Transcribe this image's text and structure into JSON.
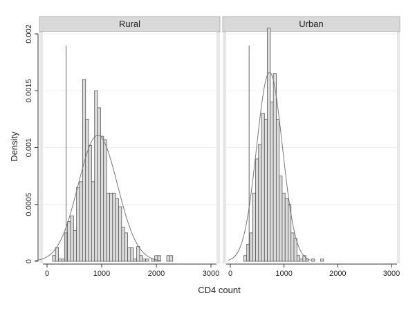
{
  "chart_data": {
    "type": "bar",
    "chart_kind": "histogram with normal density overlay, faceted",
    "xlabel": "CD4 count",
    "ylabel": "Density",
    "xlim": [
      0,
      3000
    ],
    "ylim": [
      0,
      0.002
    ],
    "x_ticks": [
      {
        "value": 0,
        "label": "0"
      },
      {
        "value": 1000,
        "label": "1000"
      },
      {
        "value": 2000,
        "label": "2000"
      },
      {
        "value": 3000,
        "label": "3000"
      }
    ],
    "y_ticks": [
      {
        "value": 0,
        "label": "0"
      },
      {
        "value": 0.0005,
        "label": "0.0005"
      },
      {
        "value": 0.001,
        "label": "0.001"
      },
      {
        "value": 0.0015,
        "label": "0.0015"
      },
      {
        "value": 0.002,
        "label": "0.002"
      }
    ],
    "bin_width": 55,
    "grid": true,
    "reference_line_x": 350,
    "panels": [
      {
        "title": "Rural",
        "bins": [
          {
            "x0": 100,
            "density": 5e-05
          },
          {
            "x0": 155,
            "density": 0.00012
          },
          {
            "x0": 210,
            "density": 2e-05
          },
          {
            "x0": 265,
            "density": 2e-05
          },
          {
            "x0": 320,
            "density": 0.00025
          },
          {
            "x0": 375,
            "density": 0.00035
          },
          {
            "x0": 430,
            "density": 0.0004
          },
          {
            "x0": 485,
            "density": 0.00027
          },
          {
            "x0": 540,
            "density": 0.00065
          },
          {
            "x0": 595,
            "density": 0.0007
          },
          {
            "x0": 650,
            "density": 0.0016
          },
          {
            "x0": 705,
            "density": 0.00125
          },
          {
            "x0": 760,
            "density": 0.00102
          },
          {
            "x0": 815,
            "density": 0.0007
          },
          {
            "x0": 870,
            "density": 0.0015
          },
          {
            "x0": 925,
            "density": 0.00135
          },
          {
            "x0": 980,
            "density": 0.0011
          },
          {
            "x0": 1035,
            "density": 0.00107
          },
          {
            "x0": 1090,
            "density": 0.0006
          },
          {
            "x0": 1145,
            "density": 0.0006
          },
          {
            "x0": 1200,
            "density": 0.0006
          },
          {
            "x0": 1255,
            "density": 0.00055
          },
          {
            "x0": 1310,
            "density": 0.00048
          },
          {
            "x0": 1365,
            "density": 0.0003
          },
          {
            "x0": 1420,
            "density": 0.00025
          },
          {
            "x0": 1475,
            "density": 0.00012
          },
          {
            "x0": 1530,
            "density": 0.00012
          },
          {
            "x0": 1585,
            "density": 2e-05
          },
          {
            "x0": 1640,
            "density": 0.00013
          },
          {
            "x0": 1695,
            "density": 5e-05
          },
          {
            "x0": 1750,
            "density": 2e-05
          },
          {
            "x0": 1805,
            "density": 2e-05
          },
          {
            "x0": 1860,
            "density": 0
          },
          {
            "x0": 1915,
            "density": 2e-05
          },
          {
            "x0": 1970,
            "density": 5e-05
          },
          {
            "x0": 2025,
            "density": 5e-05
          },
          {
            "x0": 2080,
            "density": 0
          },
          {
            "x0": 2135,
            "density": 0
          },
          {
            "x0": 2190,
            "density": 5e-05
          },
          {
            "x0": 2245,
            "density": 5e-05
          }
        ],
        "normal_curve": {
          "mean": 930,
          "sd": 360
        }
      },
      {
        "title": "Urban",
        "bins": [
          {
            "x0": 250,
            "density": 5e-05
          },
          {
            "x0": 305,
            "density": 0.00015
          },
          {
            "x0": 360,
            "density": 0.00025
          },
          {
            "x0": 415,
            "density": 0.0006
          },
          {
            "x0": 470,
            "density": 0.0009
          },
          {
            "x0": 525,
            "density": 0.00103
          },
          {
            "x0": 580,
            "density": 0.0013
          },
          {
            "x0": 635,
            "density": 0.00125
          },
          {
            "x0": 690,
            "density": 0.00205
          },
          {
            "x0": 745,
            "density": 0.0014
          },
          {
            "x0": 800,
            "density": 0.00165
          },
          {
            "x0": 855,
            "density": 0.00125
          },
          {
            "x0": 910,
            "density": 0.00075
          },
          {
            "x0": 965,
            "density": 0.0006
          },
          {
            "x0": 1020,
            "density": 0.00055
          },
          {
            "x0": 1075,
            "density": 0.0005
          },
          {
            "x0": 1130,
            "density": 0.00025
          },
          {
            "x0": 1185,
            "density": 0.0002
          },
          {
            "x0": 1240,
            "density": 5e-05
          },
          {
            "x0": 1295,
            "density": 2e-05
          },
          {
            "x0": 1350,
            "density": 5e-05
          },
          {
            "x0": 1405,
            "density": 2e-05
          },
          {
            "x0": 1460,
            "density": 0
          },
          {
            "x0": 1515,
            "density": 2e-05
          },
          {
            "x0": 1570,
            "density": 0
          },
          {
            "x0": 1625,
            "density": 0
          },
          {
            "x0": 1680,
            "density": 2e-05
          }
        ],
        "normal_curve": {
          "mean": 730,
          "sd": 240
        }
      }
    ]
  }
}
